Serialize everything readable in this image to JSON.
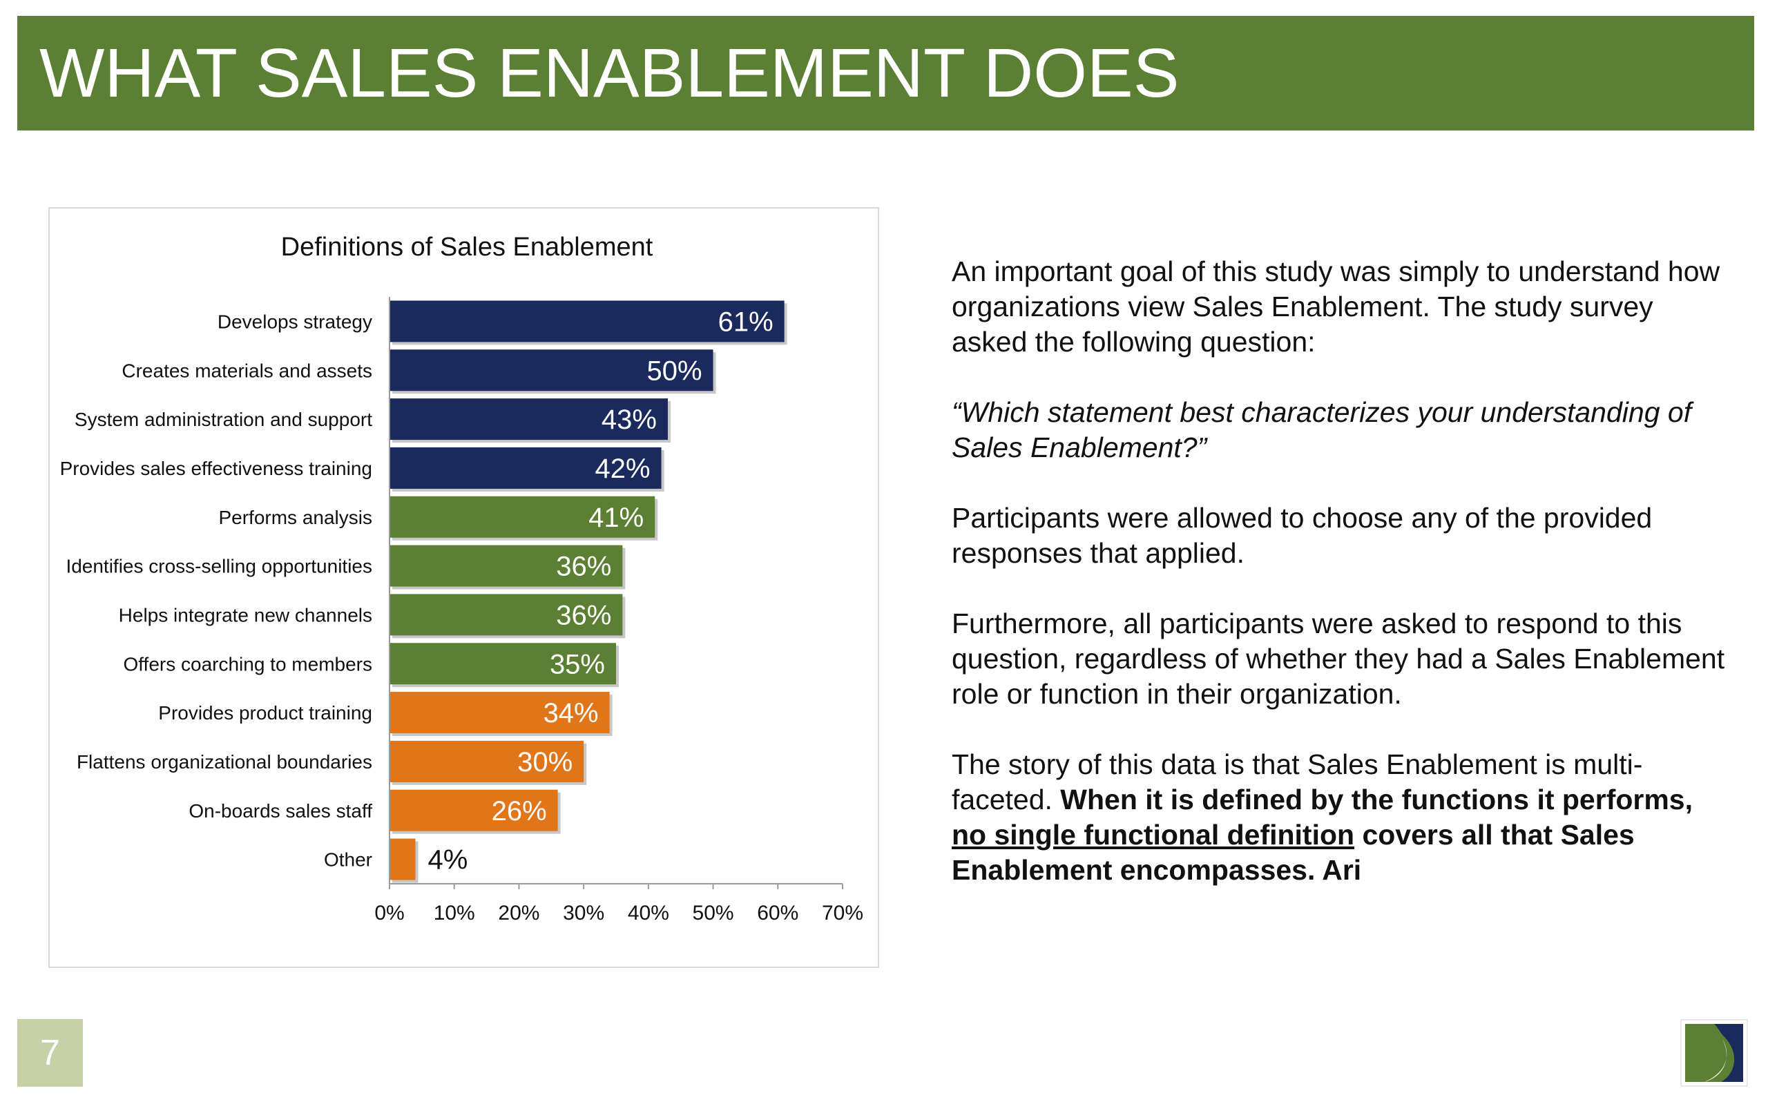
{
  "header": {
    "title": "WHAT SALES ENABLEMENT DOES"
  },
  "chart_data": {
    "type": "bar",
    "orientation": "horizontal",
    "title": "Definitions of Sales Enablement",
    "xlabel": "",
    "ylabel": "",
    "categories": [
      "Develops strategy",
      "Creates materials and assets",
      "System administration and support",
      "Provides sales effectiveness training",
      "Performs analysis",
      "Identifies cross-selling opportunities",
      "Helps integrate new channels",
      "Offers coarching to members",
      "Provides product training",
      "Flattens organizational boundaries",
      "On-boards sales staff",
      "Other"
    ],
    "values": [
      61,
      50,
      43,
      42,
      41,
      36,
      36,
      35,
      34,
      30,
      26,
      4
    ],
    "value_labels": [
      "61%",
      "50%",
      "43%",
      "42%",
      "41%",
      "36%",
      "36%",
      "35%",
      "34%",
      "30%",
      "26%",
      "4%"
    ],
    "bar_colors": [
      "#1b2a5c",
      "#1b2a5c",
      "#1b2a5c",
      "#1b2a5c",
      "#5b7f33",
      "#5b7f33",
      "#5b7f33",
      "#5b7f33",
      "#e07519",
      "#e07519",
      "#e07519",
      "#e07519"
    ],
    "xlim": [
      0,
      70
    ],
    "xticks": [
      "0%",
      "10%",
      "20%",
      "30%",
      "40%",
      "50%",
      "60%",
      "70%"
    ],
    "grid": false,
    "legend": "none"
  },
  "body": {
    "p1": "An important goal of this study was simply to understand how organizations view Sales Enablement. The study survey asked the following question:",
    "quote": "“Which statement best characterizes your understanding of Sales Enablement?”",
    "p3": "Participants were allowed to choose any of the provided responses that applied.",
    "p4": "Furthermore, all participants were asked to respond to this question, regardless of whether they had a Sales Enablement role or function in their organization.",
    "p5_normal": "The story of this data is that Sales Enablement is multi-faceted.  ",
    "p5_bold_1": "When it is defined by the functions it performs, ",
    "p5_bold_underlined": "no single functional definition",
    "p5_bold_2": " covers all that Sales Enablement encompasses. Ari"
  },
  "footer": {
    "page_number": "7"
  },
  "colors": {
    "green": "#5b7f33",
    "navy": "#1b2a5c",
    "orange": "#e07519",
    "page_box": "#c7d1a8"
  }
}
